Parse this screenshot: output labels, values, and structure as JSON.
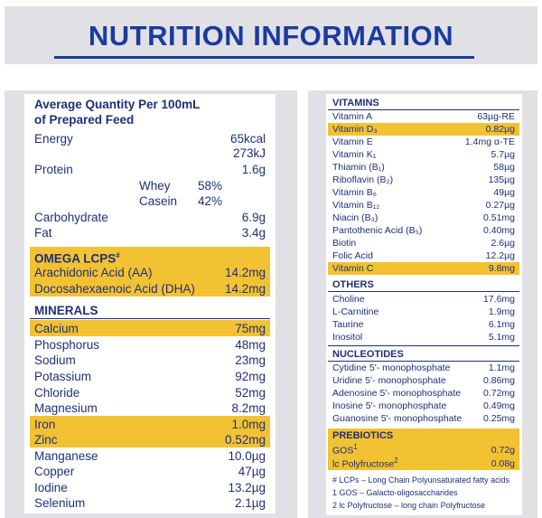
{
  "header": {
    "title": "NUTRITION INFORMATION"
  },
  "left": {
    "heading_line1": "Average Quantity Per 100mL",
    "heading_line2": "of Prepared Feed",
    "energy": {
      "name": "Energy",
      "val1": "65kcal",
      "val2": "273kJ"
    },
    "protein": {
      "name": "Protein",
      "val": "1.6g"
    },
    "whey": {
      "name": "Whey",
      "val": "58%"
    },
    "casein": {
      "name": "Casein",
      "val": "42%"
    },
    "carbohydrate": {
      "name": "Carbohydrate",
      "val": "6.9g"
    },
    "fat": {
      "name": "Fat",
      "val": "3.4g"
    },
    "omega": {
      "title": "OMEGA LCPS",
      "title_mark": "#",
      "items": [
        {
          "name": "Arachidonic Acid (AA)",
          "val": "14.2mg"
        },
        {
          "name": "Docosahexaenoic Acid (DHA)",
          "val": "14.2mg"
        }
      ]
    },
    "minerals": {
      "title": "MINERALS",
      "items": [
        {
          "name": "Calcium",
          "val": "75mg"
        },
        {
          "name": "Phosphorus",
          "val": "48mg"
        },
        {
          "name": "Sodium",
          "val": "23mg"
        },
        {
          "name": "Potassium",
          "val": "92mg"
        },
        {
          "name": "Chloride",
          "val": "52mg"
        },
        {
          "name": "Magnesium",
          "val": "8.2mg"
        },
        {
          "name": "Iron",
          "val": "1.0mg"
        },
        {
          "name": "Zinc",
          "val": "0.52mg"
        },
        {
          "name": "Manganese",
          "val": "10.0µg"
        },
        {
          "name": "Copper",
          "val": "47µg"
        },
        {
          "name": "Iodine",
          "val": "13.2µg"
        },
        {
          "name": "Selenium",
          "val": "2.1µg"
        }
      ]
    }
  },
  "right": {
    "vitamins": {
      "title": "VITAMINS",
      "items": [
        {
          "name": "Vitamin A",
          "val": "63µg-RE"
        },
        {
          "name": "Vitamin D₃",
          "val": "0.82µg"
        },
        {
          "name": "Vitamin E",
          "val": "1.4mg α-TE"
        },
        {
          "name": "Vitamin K₁",
          "val": "5.7µg"
        },
        {
          "name": "Thiamin (B₁)",
          "val": "58µg"
        },
        {
          "name": "Riboflavin (B₂)",
          "val": "135µg"
        },
        {
          "name": "Vitamin B₆",
          "val": "49µg"
        },
        {
          "name": "Vitamin B₁₂",
          "val": "0.27µg"
        },
        {
          "name": "Niacin (B₃)",
          "val": "0.51mg"
        },
        {
          "name": "Pantothenic Acid (B₅)",
          "val": "0.40mg"
        },
        {
          "name": "Biotin",
          "val": "2.6µg"
        },
        {
          "name": "Folic Acid",
          "val": "12.2µg"
        },
        {
          "name": "Vitamin C",
          "val": "9.8mg"
        }
      ]
    },
    "others": {
      "title": "OTHERS",
      "items": [
        {
          "name": "Choline",
          "val": "17.6mg"
        },
        {
          "name": "L-Carnitine",
          "val": "1.9mg"
        },
        {
          "name": "Taurine",
          "val": "6.1mg"
        },
        {
          "name": "Inositol",
          "val": "5.1mg"
        }
      ]
    },
    "nucleotides": {
      "title": "NUCLEOTIDES",
      "items": [
        {
          "name": "Cytidine 5'- monophosphate",
          "val": "1.1mg"
        },
        {
          "name": "Uridine 5'- monophosphate",
          "val": "0.86mg"
        },
        {
          "name": "Adenosine 5'- monophosphate",
          "val": "0.72mg"
        },
        {
          "name": "Inosine 5'- monophosphate",
          "val": "0.49mg"
        },
        {
          "name": "Guanosine 5'- monophosphate",
          "val": "0.25mg"
        }
      ]
    },
    "prebiotics": {
      "title": "PREBIOTICS",
      "items": [
        {
          "name": "GOS",
          "mark": "1",
          "val": "0.72g"
        },
        {
          "name": "lc Polyfructose",
          "mark": "2",
          "val": "0.08g"
        }
      ]
    },
    "footnotes": [
      "# LCPs – Long Chain Polyunsaturated fatty acids",
      "1 GOS – Galacto-oligosaccharides",
      "2 lc Polyfructose – long chain Polyfructose"
    ]
  },
  "colors": {
    "navy": "#1f2f7a",
    "title_blue": "#1a3b9e",
    "highlight": "#f2c232",
    "panel_grey": "#e1e1e5"
  }
}
